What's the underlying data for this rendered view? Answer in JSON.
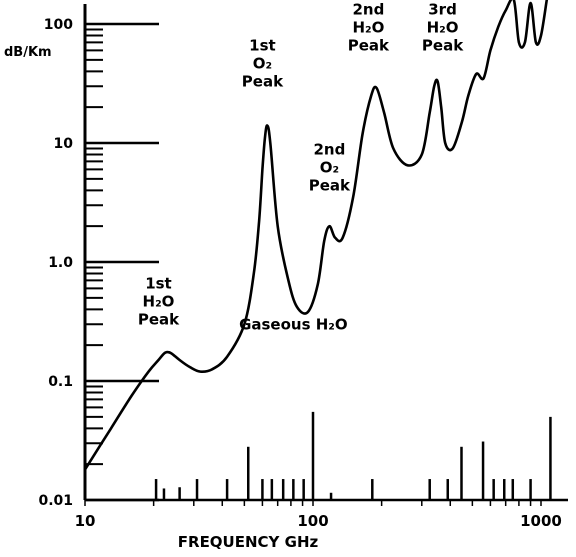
{
  "chart_data": {
    "type": "line",
    "title": "",
    "xlabel": "FREQUENCY GHz",
    "ylabel": "dB/Km",
    "x_scale": "log",
    "y_scale": "log",
    "xlim": [
      10,
      1000
    ],
    "ylim": [
      0.01,
      100
    ],
    "grid": false,
    "y_tick_values": [
      0.01,
      0.1,
      1.0,
      10,
      100
    ],
    "y_tick_labels": [
      "0.01",
      "0.1",
      "1.0",
      "10",
      "100"
    ],
    "x_tick_values": [
      10,
      100,
      1000
    ],
    "x_tick_labels": [
      "10",
      "100",
      "1000"
    ],
    "series": [
      {
        "x": [
          10,
          13,
          16,
          19,
          21,
          22.2,
          23,
          24,
          26,
          29,
          32,
          36,
          42,
          50,
          55,
          58,
          60,
          61.5,
          63,
          65,
          70,
          78,
          85,
          95,
          105,
          112,
          118,
          125,
          135,
          150,
          165,
          180,
          190,
          205,
          225,
          260,
          300,
          325,
          340,
          352,
          365,
          380,
          410,
          450,
          480,
          520,
          560,
          600,
          650,
          700,
          760,
          800,
          850,
          900,
          950,
          1000,
          1060
        ],
        "values": [
          0.018,
          0.04,
          0.075,
          0.12,
          0.15,
          0.17,
          0.175,
          0.17,
          0.15,
          0.13,
          0.12,
          0.125,
          0.16,
          0.3,
          0.8,
          2.2,
          6,
          11,
          14,
          10,
          2.0,
          0.7,
          0.42,
          0.38,
          0.65,
          1.5,
          2.0,
          1.6,
          1.6,
          3.5,
          12,
          25,
          29,
          18,
          9,
          6.5,
          8,
          18,
          30,
          33,
          20,
          10,
          9,
          15,
          25,
          38,
          35,
          60,
          95,
          130,
          160,
          70,
          70,
          150,
          70,
          80,
          160
        ]
      }
    ],
    "annotations": [
      {
        "lines": [
          "1st",
          "H₂O",
          "Peak"
        ],
        "x": 21,
        "y": 0.6
      },
      {
        "lines": [
          "1st",
          "O₂",
          "Peak"
        ],
        "x": 60,
        "y": 60
      },
      {
        "lines": [
          "2nd",
          "O₂",
          "Peak"
        ],
        "x": 118,
        "y": 8
      },
      {
        "lines": [
          "2nd",
          "H₂O",
          "Peak"
        ],
        "x": 175,
        "y": 120
      },
      {
        "lines": [
          "3rd",
          "H₂O",
          "Peak"
        ],
        "x": 370,
        "y": 120
      },
      {
        "lines": [
          "Gaseous H₂O"
        ],
        "x": 82,
        "y": 0.27
      }
    ],
    "spectral_lines": [
      {
        "x": 20.5,
        "value": 0.015
      },
      {
        "x": 22.2,
        "value": 0.0125
      },
      {
        "x": 26,
        "value": 0.0128
      },
      {
        "x": 31,
        "value": 0.015
      },
      {
        "x": 42,
        "value": 0.015
      },
      {
        "x": 52,
        "value": 0.028
      },
      {
        "x": 60,
        "value": 0.015
      },
      {
        "x": 66,
        "value": 0.015
      },
      {
        "x": 74,
        "value": 0.015
      },
      {
        "x": 82,
        "value": 0.015
      },
      {
        "x": 91,
        "value": 0.015
      },
      {
        "x": 100,
        "value": 0.055
      },
      {
        "x": 120,
        "value": 0.0115
      },
      {
        "x": 182,
        "value": 0.015
      },
      {
        "x": 325,
        "value": 0.015
      },
      {
        "x": 390,
        "value": 0.015
      },
      {
        "x": 448,
        "value": 0.028
      },
      {
        "x": 557,
        "value": 0.031
      },
      {
        "x": 620,
        "value": 0.015
      },
      {
        "x": 690,
        "value": 0.015
      },
      {
        "x": 752,
        "value": 0.015
      },
      {
        "x": 900,
        "value": 0.015
      },
      {
        "x": 1100,
        "value": 0.05
      }
    ]
  }
}
